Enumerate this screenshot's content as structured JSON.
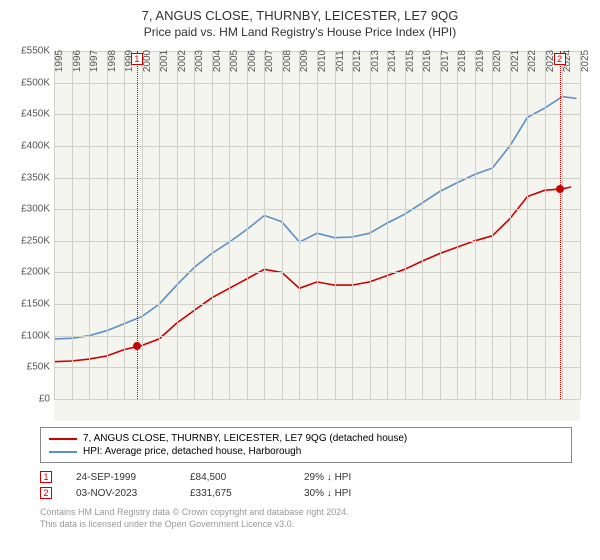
{
  "title": "7, ANGUS CLOSE, THURNBY, LEICESTER, LE7 9QG",
  "subtitle": "Price paid vs. HM Land Registry's House Price Index (HPI)",
  "chart": {
    "type": "line",
    "background_color": "#f5f5f0",
    "grid_color": "#d0d0c8",
    "xlim": [
      1995,
      2025
    ],
    "ylim": [
      0,
      550000
    ],
    "ytick_step": 50000,
    "yticks": [
      "£0",
      "£50K",
      "£100K",
      "£150K",
      "£200K",
      "£250K",
      "£300K",
      "£350K",
      "£400K",
      "£450K",
      "£500K",
      "£550K"
    ],
    "xticks": [
      1995,
      1996,
      1997,
      1998,
      1999,
      2000,
      2001,
      2002,
      2003,
      2004,
      2005,
      2006,
      2007,
      2008,
      2009,
      2010,
      2011,
      2012,
      2013,
      2014,
      2015,
      2016,
      2017,
      2018,
      2019,
      2020,
      2021,
      2022,
      2023,
      2024,
      2025
    ],
    "series": [
      {
        "id": "property",
        "color": "#cc0000",
        "width": 1.6,
        "years": [
          1995,
          1996,
          1997,
          1998,
          1999,
          2000,
          2001,
          2002,
          2003,
          2004,
          2005,
          2006,
          2007,
          2008,
          2009,
          2010,
          2011,
          2012,
          2013,
          2014,
          2015,
          2016,
          2017,
          2018,
          2019,
          2020,
          2021,
          2022,
          2023,
          2023.9,
          2024.5
        ],
        "values": [
          59000,
          60000,
          63000,
          68000,
          78000,
          84500,
          95000,
          120000,
          140000,
          160000,
          175000,
          190000,
          205000,
          200000,
          175000,
          185000,
          180000,
          180000,
          185000,
          195000,
          205000,
          218000,
          230000,
          240000,
          250000,
          258000,
          285000,
          320000,
          330000,
          331675,
          335000
        ]
      },
      {
        "id": "hpi",
        "color": "#5b8fc9",
        "width": 1.6,
        "years": [
          1995,
          1996,
          1997,
          1998,
          1999,
          2000,
          2001,
          2002,
          2003,
          2004,
          2005,
          2006,
          2007,
          2008,
          2009,
          2010,
          2011,
          2012,
          2013,
          2014,
          2015,
          2016,
          2017,
          2018,
          2019,
          2020,
          2021,
          2022,
          2023,
          2024,
          2024.8
        ],
        "values": [
          95000,
          96000,
          100000,
          108000,
          119000,
          130000,
          150000,
          180000,
          208000,
          230000,
          248000,
          268000,
          290000,
          280000,
          248000,
          262000,
          255000,
          256000,
          262000,
          278000,
          292000,
          310000,
          328000,
          342000,
          355000,
          365000,
          400000,
          445000,
          460000,
          478000,
          475000
        ]
      }
    ],
    "markers": [
      {
        "n": "1",
        "year": 1999.73,
        "value": 84500,
        "date": "24-SEP-1999",
        "price": "£84,500",
        "diff": "29% ↓ HPI"
      },
      {
        "n": "2",
        "year": 2023.84,
        "value": 331675,
        "date": "03-NOV-2023",
        "price": "£331,675",
        "diff": "30% ↓ HPI"
      }
    ]
  },
  "legend": [
    {
      "color": "#cc0000",
      "label": "7, ANGUS CLOSE, THURNBY, LEICESTER, LE7 9QG (detached house)"
    },
    {
      "color": "#5b8fc9",
      "label": "HPI: Average price, detached house, Harborough"
    }
  ],
  "footer1": "Contains HM Land Registry data © Crown copyright and database right 2024.",
  "footer2": "This data is licensed under the Open Government Licence v3.0."
}
